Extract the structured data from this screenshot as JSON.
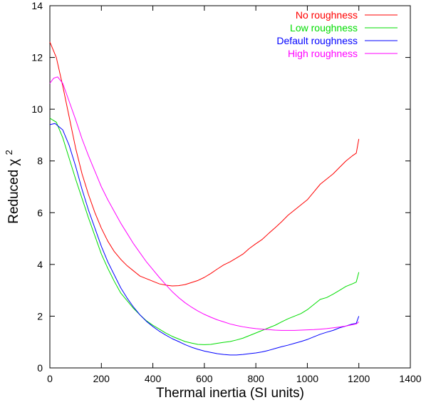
{
  "chart_data": {
    "type": "line",
    "xlabel": "Thermal inertia (SI units)",
    "ylabel_main": "Reduced χ",
    "ylabel_superscript": "2",
    "xlim": [
      0,
      1400
    ],
    "ylim": [
      0,
      14
    ],
    "xticks": [
      0,
      200,
      400,
      600,
      800,
      1000,
      1200,
      1400
    ],
    "yticks": [
      0,
      2,
      4,
      6,
      8,
      10,
      12,
      14
    ],
    "grid": false,
    "legend_position": "top-right",
    "series": [
      {
        "name": "No roughness",
        "color": "#ff0000",
        "points": [
          [
            0,
            12.6
          ],
          [
            25,
            12.0
          ],
          [
            50,
            10.9
          ],
          [
            75,
            9.7
          ],
          [
            100,
            8.5
          ],
          [
            125,
            7.5
          ],
          [
            150,
            6.7
          ],
          [
            175,
            6.0
          ],
          [
            200,
            5.4
          ],
          [
            225,
            4.9
          ],
          [
            250,
            4.5
          ],
          [
            275,
            4.2
          ],
          [
            300,
            3.95
          ],
          [
            325,
            3.75
          ],
          [
            350,
            3.55
          ],
          [
            375,
            3.45
          ],
          [
            400,
            3.35
          ],
          [
            425,
            3.25
          ],
          [
            450,
            3.2
          ],
          [
            475,
            3.17
          ],
          [
            500,
            3.18
          ],
          [
            525,
            3.22
          ],
          [
            550,
            3.3
          ],
          [
            575,
            3.38
          ],
          [
            600,
            3.5
          ],
          [
            625,
            3.65
          ],
          [
            650,
            3.82
          ],
          [
            675,
            3.98
          ],
          [
            700,
            4.1
          ],
          [
            725,
            4.25
          ],
          [
            750,
            4.4
          ],
          [
            775,
            4.62
          ],
          [
            800,
            4.8
          ],
          [
            825,
            4.97
          ],
          [
            850,
            5.2
          ],
          [
            875,
            5.42
          ],
          [
            900,
            5.65
          ],
          [
            925,
            5.9
          ],
          [
            950,
            6.1
          ],
          [
            975,
            6.3
          ],
          [
            1000,
            6.5
          ],
          [
            1025,
            6.8
          ],
          [
            1050,
            7.1
          ],
          [
            1075,
            7.3
          ],
          [
            1100,
            7.5
          ],
          [
            1125,
            7.75
          ],
          [
            1150,
            8.0
          ],
          [
            1175,
            8.2
          ],
          [
            1190,
            8.3
          ],
          [
            1200,
            8.85
          ]
        ]
      },
      {
        "name": "Low roughness",
        "color": "#00dd00",
        "points": [
          [
            0,
            9.65
          ],
          [
            25,
            9.5
          ],
          [
            50,
            8.9
          ],
          [
            75,
            8.1
          ],
          [
            100,
            7.3
          ],
          [
            125,
            6.55
          ],
          [
            150,
            5.8
          ],
          [
            175,
            5.1
          ],
          [
            200,
            4.4
          ],
          [
            225,
            3.85
          ],
          [
            250,
            3.35
          ],
          [
            275,
            2.9
          ],
          [
            300,
            2.6
          ],
          [
            325,
            2.3
          ],
          [
            350,
            2.05
          ],
          [
            375,
            1.82
          ],
          [
            400,
            1.65
          ],
          [
            425,
            1.5
          ],
          [
            450,
            1.35
          ],
          [
            475,
            1.22
          ],
          [
            500,
            1.12
          ],
          [
            525,
            1.02
          ],
          [
            550,
            0.96
          ],
          [
            575,
            0.91
          ],
          [
            600,
            0.9
          ],
          [
            625,
            0.91
          ],
          [
            650,
            0.95
          ],
          [
            675,
            0.99
          ],
          [
            700,
            1.02
          ],
          [
            725,
            1.08
          ],
          [
            750,
            1.15
          ],
          [
            775,
            1.25
          ],
          [
            800,
            1.35
          ],
          [
            825,
            1.45
          ],
          [
            850,
            1.55
          ],
          [
            875,
            1.65
          ],
          [
            900,
            1.78
          ],
          [
            925,
            1.9
          ],
          [
            950,
            2.0
          ],
          [
            975,
            2.1
          ],
          [
            1000,
            2.25
          ],
          [
            1025,
            2.45
          ],
          [
            1050,
            2.65
          ],
          [
            1075,
            2.72
          ],
          [
            1100,
            2.85
          ],
          [
            1125,
            3.0
          ],
          [
            1150,
            3.15
          ],
          [
            1175,
            3.25
          ],
          [
            1190,
            3.32
          ],
          [
            1200,
            3.7
          ]
        ]
      },
      {
        "name": "Default roughness",
        "color": "#0000ff",
        "points": [
          [
            0,
            9.4
          ],
          [
            20,
            9.45
          ],
          [
            50,
            9.2
          ],
          [
            75,
            8.6
          ],
          [
            100,
            7.8
          ],
          [
            125,
            6.9
          ],
          [
            150,
            6.1
          ],
          [
            175,
            5.4
          ],
          [
            200,
            4.7
          ],
          [
            225,
            4.1
          ],
          [
            250,
            3.6
          ],
          [
            275,
            3.1
          ],
          [
            300,
            2.7
          ],
          [
            325,
            2.35
          ],
          [
            350,
            2.05
          ],
          [
            375,
            1.8
          ],
          [
            400,
            1.6
          ],
          [
            425,
            1.42
          ],
          [
            450,
            1.27
          ],
          [
            475,
            1.13
          ],
          [
            500,
            1.02
          ],
          [
            525,
            0.9
          ],
          [
            550,
            0.8
          ],
          [
            575,
            0.72
          ],
          [
            600,
            0.65
          ],
          [
            625,
            0.6
          ],
          [
            650,
            0.55
          ],
          [
            675,
            0.52
          ],
          [
            700,
            0.5
          ],
          [
            725,
            0.5
          ],
          [
            750,
            0.52
          ],
          [
            775,
            0.55
          ],
          [
            800,
            0.58
          ],
          [
            825,
            0.62
          ],
          [
            850,
            0.68
          ],
          [
            875,
            0.75
          ],
          [
            900,
            0.82
          ],
          [
            925,
            0.88
          ],
          [
            950,
            0.95
          ],
          [
            975,
            1.02
          ],
          [
            1000,
            1.1
          ],
          [
            1025,
            1.2
          ],
          [
            1050,
            1.3
          ],
          [
            1075,
            1.38
          ],
          [
            1100,
            1.45
          ],
          [
            1125,
            1.55
          ],
          [
            1150,
            1.62
          ],
          [
            1175,
            1.7
          ],
          [
            1190,
            1.72
          ],
          [
            1200,
            2.0
          ]
        ]
      },
      {
        "name": "High roughness",
        "color": "#ff00ff",
        "points": [
          [
            0,
            11.0
          ],
          [
            15,
            11.2
          ],
          [
            30,
            11.25
          ],
          [
            50,
            11.0
          ],
          [
            75,
            10.3
          ],
          [
            100,
            9.6
          ],
          [
            125,
            8.85
          ],
          [
            150,
            8.2
          ],
          [
            175,
            7.6
          ],
          [
            200,
            7.0
          ],
          [
            225,
            6.5
          ],
          [
            250,
            6.05
          ],
          [
            275,
            5.6
          ],
          [
            300,
            5.2
          ],
          [
            325,
            4.8
          ],
          [
            350,
            4.45
          ],
          [
            375,
            4.1
          ],
          [
            400,
            3.8
          ],
          [
            425,
            3.5
          ],
          [
            450,
            3.22
          ],
          [
            475,
            2.95
          ],
          [
            500,
            2.72
          ],
          [
            525,
            2.52
          ],
          [
            550,
            2.35
          ],
          [
            575,
            2.2
          ],
          [
            600,
            2.07
          ],
          [
            625,
            1.96
          ],
          [
            650,
            1.86
          ],
          [
            675,
            1.78
          ],
          [
            700,
            1.7
          ],
          [
            725,
            1.64
          ],
          [
            750,
            1.59
          ],
          [
            775,
            1.55
          ],
          [
            800,
            1.52
          ],
          [
            825,
            1.5
          ],
          [
            850,
            1.48
          ],
          [
            875,
            1.46
          ],
          [
            900,
            1.45
          ],
          [
            925,
            1.45
          ],
          [
            950,
            1.45
          ],
          [
            975,
            1.46
          ],
          [
            1000,
            1.47
          ],
          [
            1025,
            1.48
          ],
          [
            1050,
            1.5
          ],
          [
            1075,
            1.52
          ],
          [
            1100,
            1.55
          ],
          [
            1125,
            1.58
          ],
          [
            1150,
            1.62
          ],
          [
            1175,
            1.67
          ],
          [
            1190,
            1.7
          ],
          [
            1200,
            1.78
          ]
        ]
      }
    ]
  }
}
